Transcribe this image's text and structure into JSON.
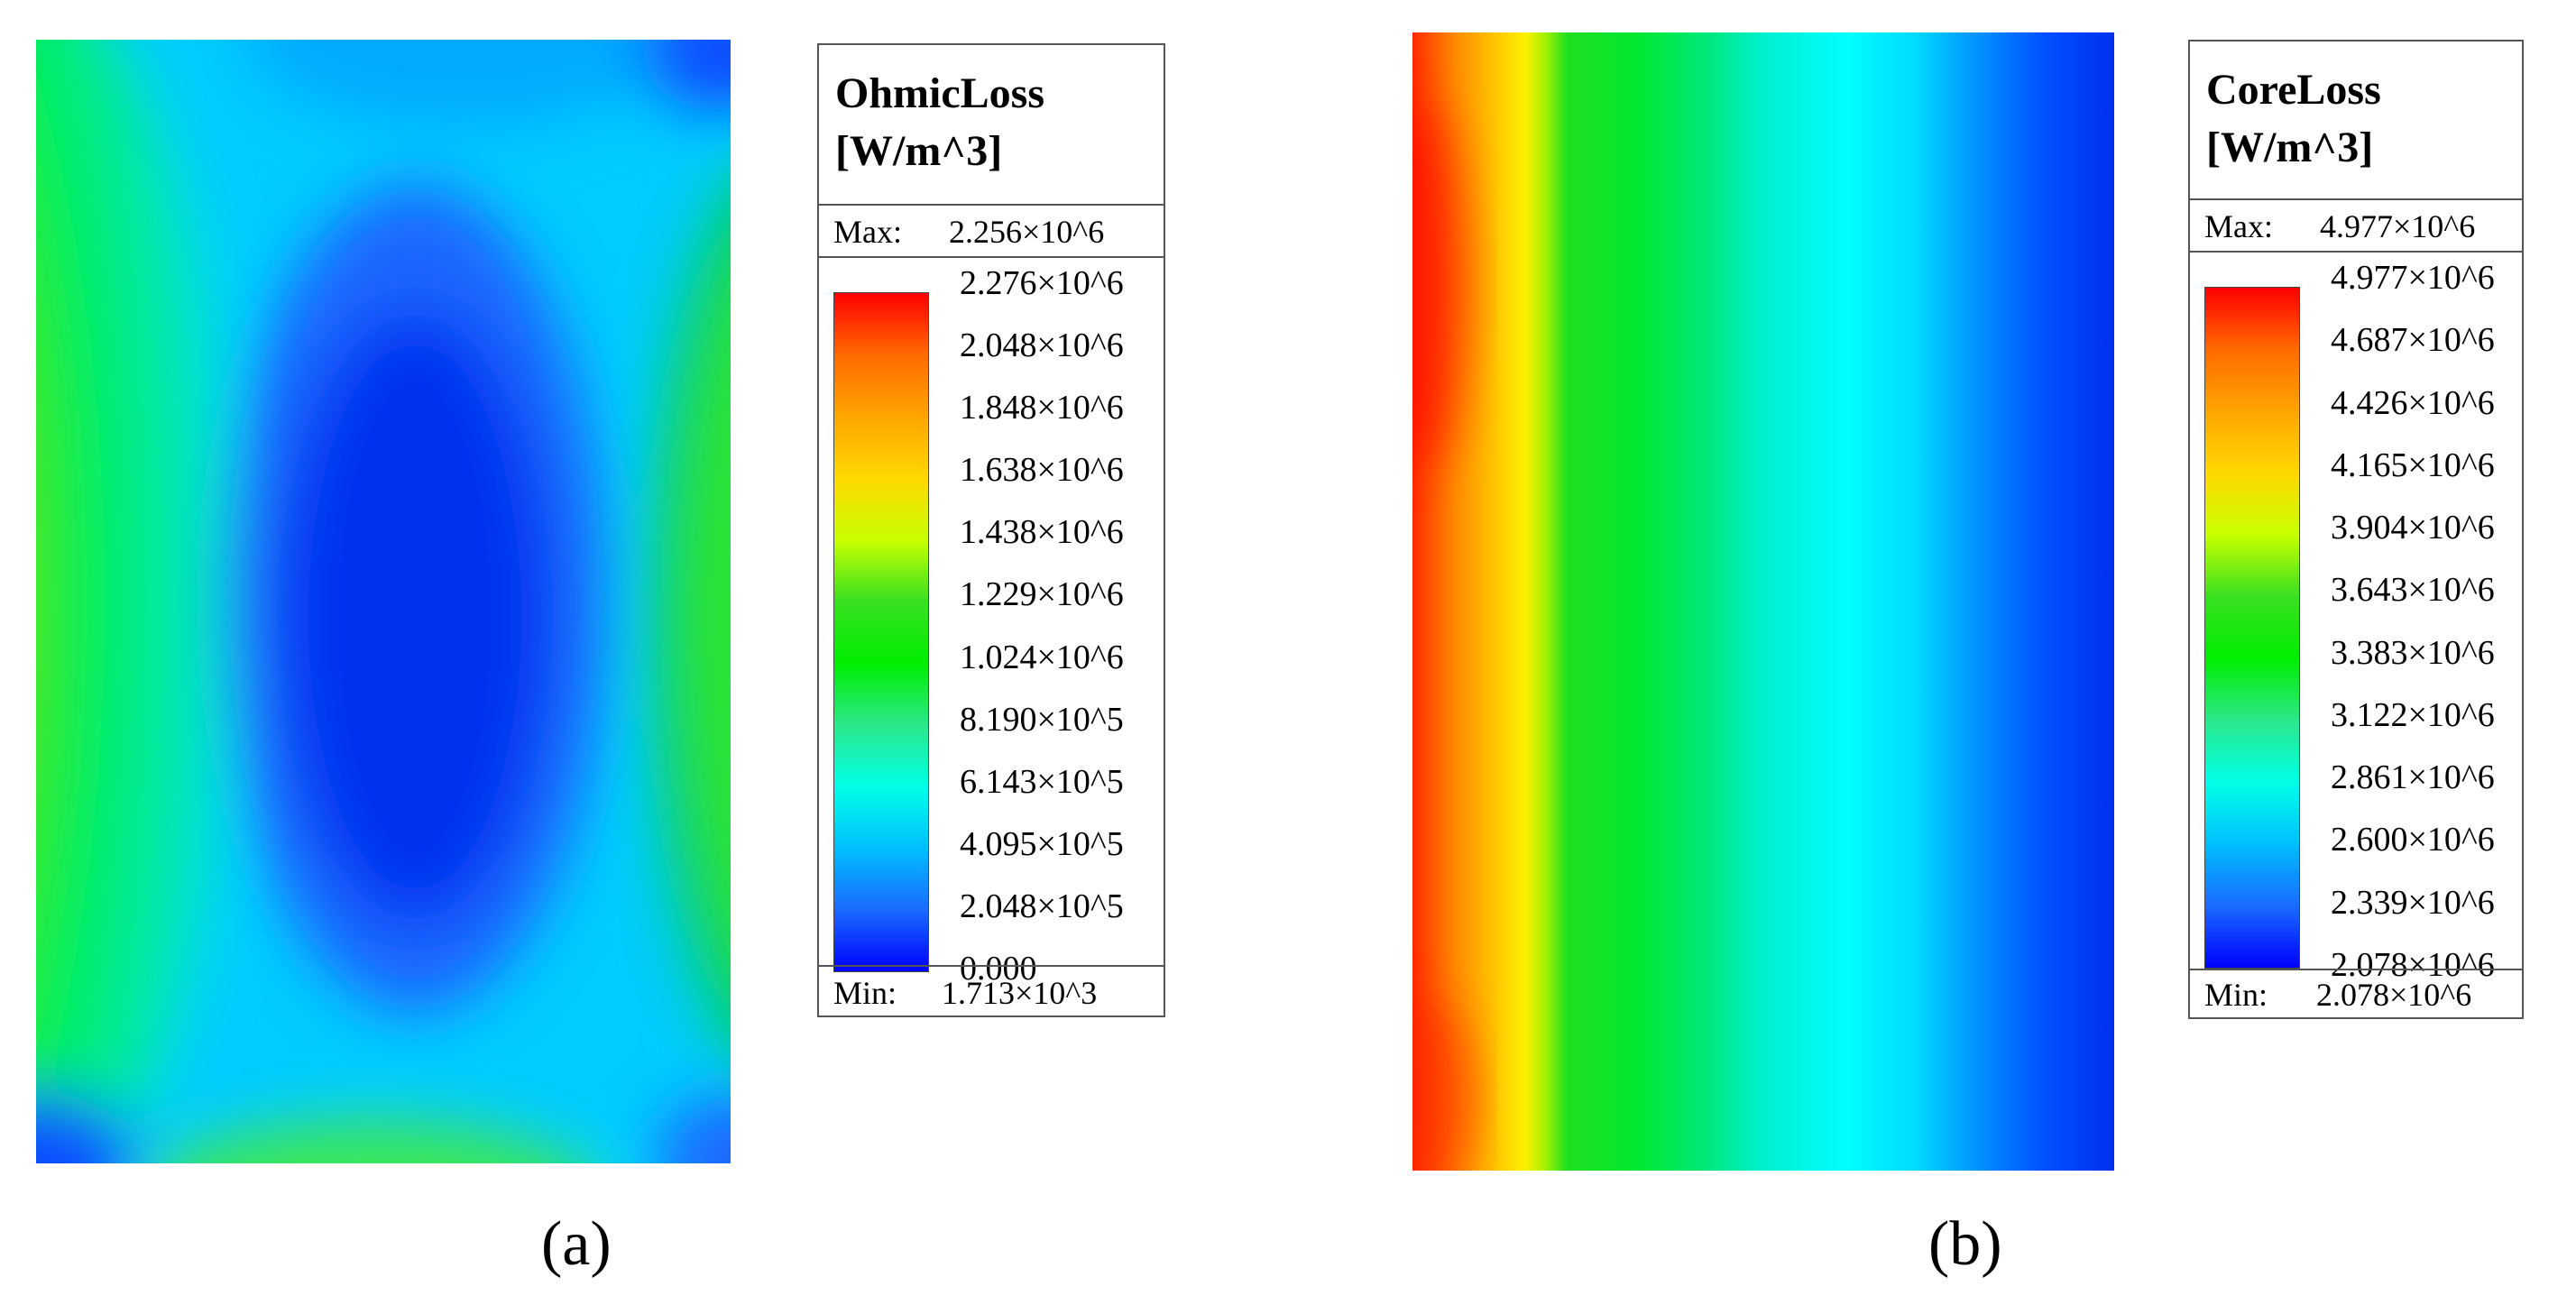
{
  "chart_data": [
    {
      "type": "heatmap",
      "panel_label": "(a)",
      "legend_title": [
        "OhmicLoss",
        "[W/m^3]"
      ],
      "max_label": "Max:",
      "max_value": "2.256×10^6",
      "min_label": "Min:",
      "min_value": "1.713×10^3",
      "scale_ticks": [
        "2.276×10^6",
        "2.048×10^6",
        "1.848×10^6",
        "1.638×10^6",
        "1.438×10^6",
        "1.229×10^6",
        "1.024×10^6",
        "8.190×10^5",
        "6.143×10^5",
        "4.095×10^5",
        "2.048×10^5",
        "0.000"
      ],
      "scale_colors": [
        "#ff0000",
        "#ff6a00",
        "#ffa500",
        "#ffd800",
        "#c8ff00",
        "#38e020",
        "#00ee00",
        "#2be88a",
        "#00ffe6",
        "#00bfff",
        "#1a6bff",
        "#0000ff"
      ],
      "field_pattern": "loss concentrated at left edge, lowest in center, moderate near right edge and bottom"
    },
    {
      "type": "heatmap",
      "panel_label": "(b)",
      "legend_title": [
        "CoreLoss",
        "[W/m^3]"
      ],
      "max_label": "Max:",
      "max_value": "4.977×10^6",
      "min_label": "Min:",
      "min_value": "2.078×10^6",
      "scale_ticks": [
        "4.977×10^6",
        "4.687×10^6",
        "4.426×10^6",
        "4.165×10^6",
        "3.904×10^6",
        "3.643×10^6",
        "3.383×10^6",
        "3.122×10^6",
        "2.861×10^6",
        "2.600×10^6",
        "2.339×10^6",
        "2.078×10^6"
      ],
      "scale_colors": [
        "#ff0000",
        "#ff6a00",
        "#ffa500",
        "#ffd800",
        "#c8ff00",
        "#38e020",
        "#00ee00",
        "#2be88a",
        "#00ffe6",
        "#00bfff",
        "#1a6bff",
        "#0000ff"
      ],
      "field_pattern": "loss decreases monotonically from left (red) to right (blue)"
    }
  ]
}
